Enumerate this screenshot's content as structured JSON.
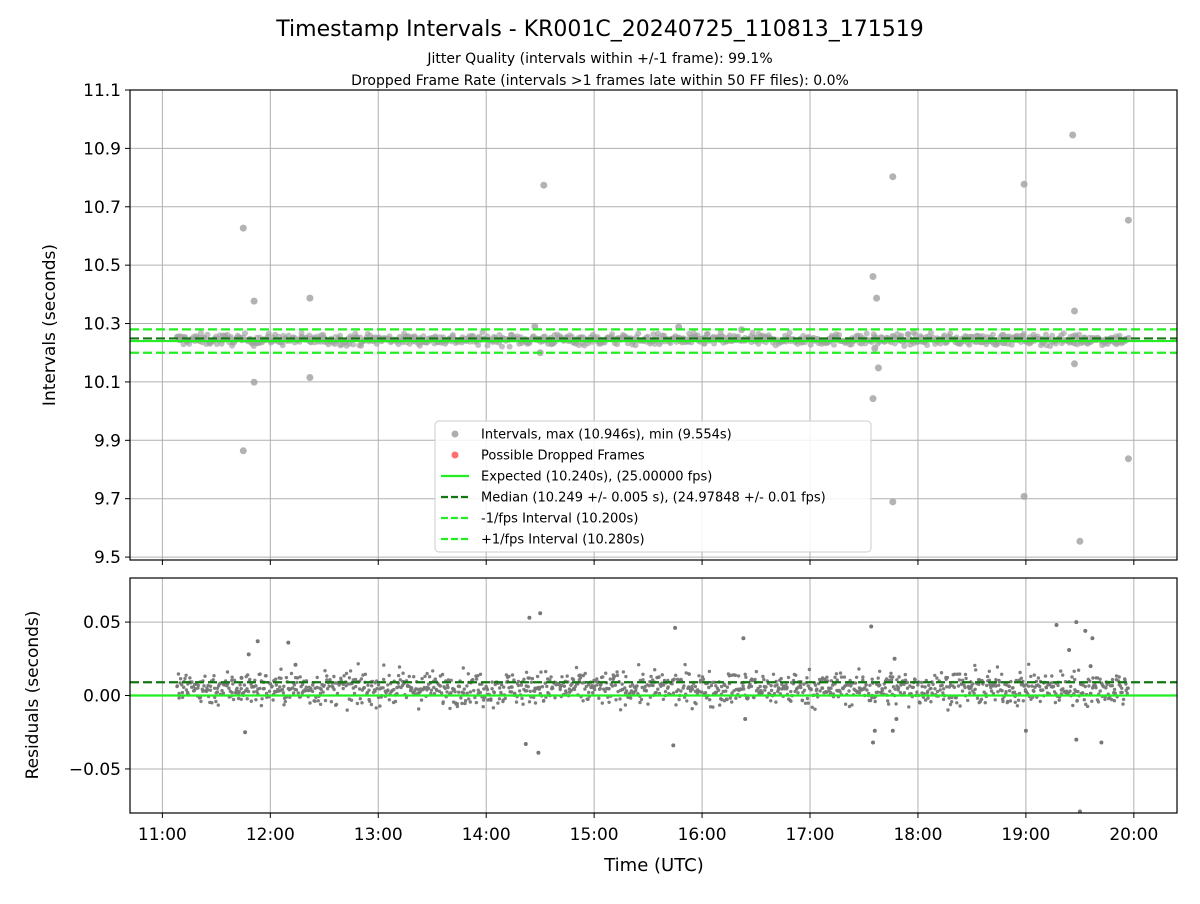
{
  "chart_data": [
    {
      "type": "scatter",
      "title": "Timestamp Intervals - KR001C_20240725_110813_171519",
      "subtitle_lines": [
        "Jitter Quality (intervals within +/-1 frame): 99.1%",
        "Dropped Frame Rate (intervals >1 frames late within 50 FF files): 0.0%"
      ],
      "xlabel": "",
      "ylabel": "Intervals (seconds)",
      "xlim": [
        "10:42",
        "20:24"
      ],
      "ylim": [
        9.49,
        11.1
      ],
      "yticks": [
        9.5,
        9.7,
        9.9,
        10.1,
        10.3,
        10.5,
        10.7,
        10.9,
        11.1
      ],
      "ytick_labels": [
        "9.5",
        "9.7",
        "9.9",
        "10.1",
        "10.3",
        "10.5",
        "10.7",
        "10.9",
        "11.1"
      ],
      "xticks": [
        "11:00",
        "12:00",
        "13:00",
        "14:00",
        "15:00",
        "16:00",
        "17:00",
        "18:00",
        "19:00",
        "20:00"
      ],
      "grid": true,
      "legend_position": "lower-center",
      "series": [
        {
          "name": "Intervals, max (10.946s), min (9.554s)",
          "kind": "points",
          "color": "#a0a0a0",
          "x": [
            "11:45",
            "11:51",
            "11:45",
            "11:51",
            "12:22",
            "12:22",
            "14:32",
            "14:27",
            "14:30",
            "15:47",
            "16:22",
            "17:35",
            "17:37",
            "17:36",
            "17:38",
            "17:35",
            "17:46",
            "17:46",
            "18:59",
            "18:59",
            "19:26",
            "19:27",
            "19:27",
            "19:30",
            "19:57",
            "19:57"
          ],
          "y": [
            10.627,
            10.377,
            9.864,
            10.099,
            10.387,
            10.115,
            10.774,
            10.29,
            10.2,
            10.288,
            10.279,
            10.461,
            10.387,
            10.215,
            10.148,
            10.043,
            10.803,
            9.689,
            10.777,
            9.708,
            10.946,
            10.343,
            10.162,
            9.554,
            10.654,
            9.837
          ],
          "dense_band": {
            "y_range": [
              10.22,
              10.27
            ],
            "x_range": [
              "11:08",
              "19:57"
            ]
          }
        },
        {
          "name": "Possible Dropped Frames",
          "kind": "points",
          "color": "#ff5555",
          "x": [],
          "y": []
        },
        {
          "name": "Expected (10.240s), (25.00000 fps)",
          "kind": "hline",
          "y": 10.24,
          "color": "#22ee22",
          "style": "solid"
        },
        {
          "name": "Median (10.249 +/- 0.005 s), (24.97848 +/- 0.01 fps)",
          "kind": "hline",
          "y": 10.249,
          "color": "#117711",
          "style": "dashed"
        },
        {
          "name": "-1/fps Interval (10.200s)",
          "kind": "hline",
          "y": 10.2,
          "color": "#22ee22",
          "style": "dashed"
        },
        {
          "name": "+1/fps Interval (10.280s)",
          "kind": "hline",
          "y": 10.28,
          "color": "#22ee22",
          "style": "dashed"
        }
      ]
    },
    {
      "type": "scatter",
      "title": "",
      "xlabel": "Time (UTC)",
      "ylabel": "Residuals (seconds)",
      "xlim": [
        "10:42",
        "20:24"
      ],
      "ylim": [
        -0.08,
        0.08
      ],
      "yticks": [
        -0.05,
        0.0,
        0.05
      ],
      "ytick_labels": [
        "−0.05",
        "0.00",
        "0.05"
      ],
      "xticks": [
        "11:00",
        "12:00",
        "13:00",
        "14:00",
        "15:00",
        "16:00",
        "17:00",
        "18:00",
        "19:00",
        "20:00"
      ],
      "grid": true,
      "series": [
        {
          "kind": "points",
          "color": "#777777",
          "x": [
            "11:48",
            "11:53",
            "11:44",
            "12:10",
            "12:14",
            "11:46",
            "14:24",
            "14:30",
            "14:29",
            "14:22",
            "15:45",
            "15:44",
            "16:23",
            "16:24",
            "17:34",
            "17:36",
            "17:35",
            "17:47",
            "17:48",
            "17:46",
            "19:17",
            "19:24",
            "19:28",
            "19:28",
            "19:33",
            "19:36",
            "19:37",
            "19:42",
            "19:30",
            "19:00"
          ],
          "y": [
            0.028,
            0.037,
            0.012,
            0.036,
            0.021,
            -0.025,
            0.053,
            0.056,
            -0.039,
            -0.033,
            0.046,
            -0.034,
            0.039,
            -0.016,
            0.047,
            -0.024,
            -0.032,
            0.025,
            -0.016,
            -0.024,
            0.048,
            0.031,
            0.05,
            -0.03,
            0.044,
            0.02,
            0.039,
            -0.032,
            -0.079,
            -0.024
          ],
          "dense_band": {
            "y_range": [
              -0.01,
              0.02
            ],
            "x_range": [
              "11:08",
              "19:57"
            ]
          }
        },
        {
          "name": "Expected residual",
          "kind": "hline",
          "y": 0.0,
          "color": "#22ee22",
          "style": "solid"
        },
        {
          "name": "Median residual",
          "kind": "hline",
          "y": 0.009,
          "color": "#117711",
          "style": "dashed"
        }
      ]
    }
  ]
}
